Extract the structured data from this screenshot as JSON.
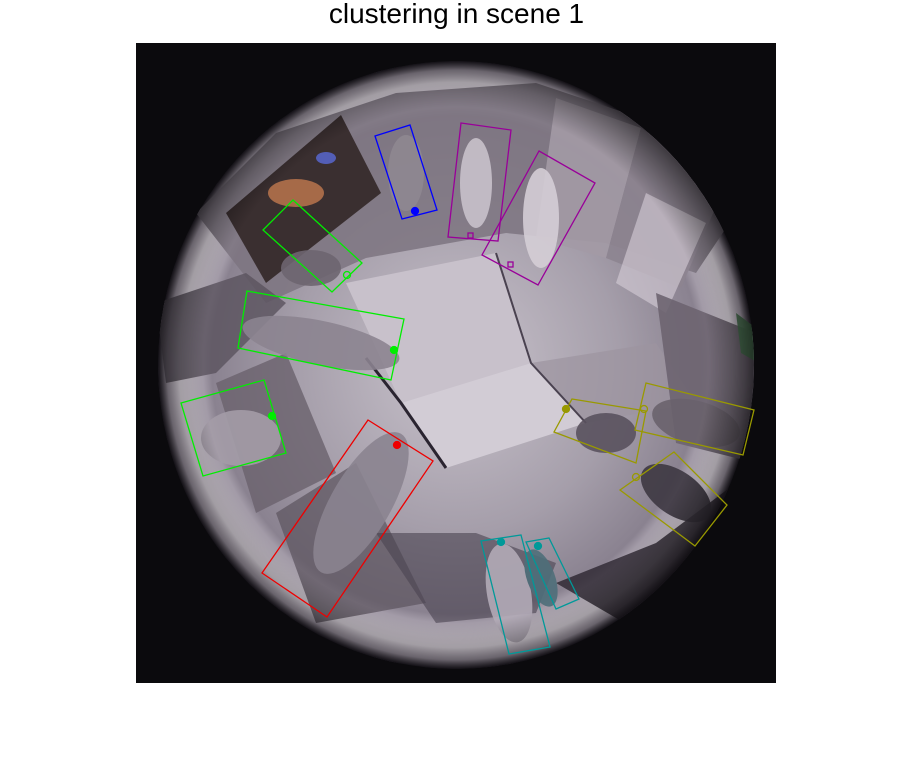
{
  "figure": {
    "title": "clustering in scene 1"
  },
  "clusters": [
    {
      "name": "blue",
      "color": "#0000ff",
      "count": 1
    },
    {
      "name": "purple",
      "color": "#990099",
      "count": 2
    },
    {
      "name": "green",
      "color": "#00ee00",
      "count": 3
    },
    {
      "name": "red",
      "color": "#ee0000",
      "count": 1
    },
    {
      "name": "olive",
      "color": "#999900",
      "count": 3
    },
    {
      "name": "teal",
      "color": "#009999",
      "count": 2
    }
  ]
}
